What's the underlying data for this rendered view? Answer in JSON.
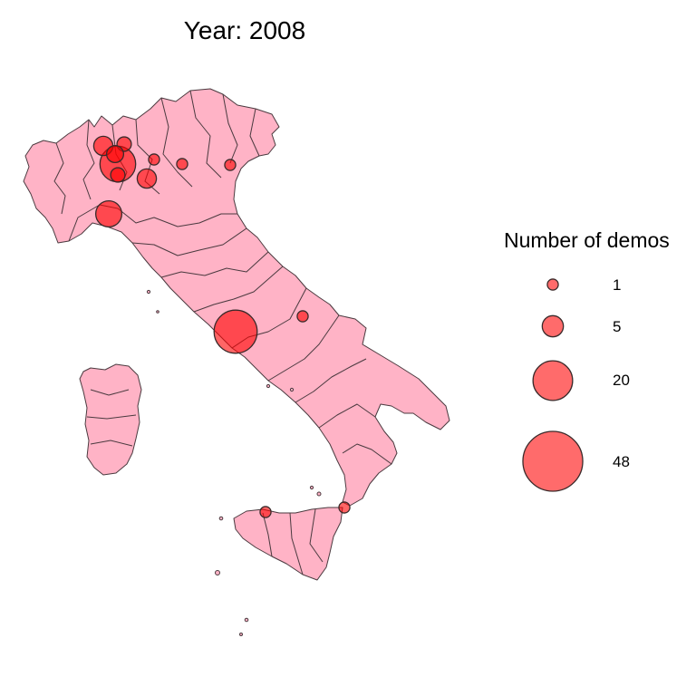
{
  "title": "Year: 2008",
  "colors": {
    "land_fill": "#ffb3c6",
    "border": "#4a3a3f",
    "bubble_fill": "#ff0000",
    "bubble_legend_fill": "#ff6b6b"
  },
  "legend": {
    "title": "Number of demos",
    "entries": [
      {
        "label": "1",
        "value": 1
      },
      {
        "label": "5",
        "value": 5
      },
      {
        "label": "20",
        "value": 20
      },
      {
        "label": "48",
        "value": 48
      }
    ]
  },
  "bubbles": [
    {
      "name": "turin-bubble",
      "value": 8
    },
    {
      "name": "milan-bubble",
      "value": 16
    },
    {
      "name": "como-bubble",
      "value": 4
    },
    {
      "name": "bergamo-bubble",
      "value": 2
    },
    {
      "name": "monza-bubble",
      "value": 3
    },
    {
      "name": "pavia-bubble",
      "value": 2
    },
    {
      "name": "brescia-bubble",
      "value": 1
    },
    {
      "name": "verona-bubble",
      "value": 1
    },
    {
      "name": "venice-bubble",
      "value": 1
    },
    {
      "name": "piacenza-bubble",
      "value": 4
    },
    {
      "name": "rome-bubble",
      "value": 24
    },
    {
      "name": "pescara-bubble",
      "value": 1
    },
    {
      "name": "palermo-bubble",
      "value": 1
    },
    {
      "name": "reggio-calabria-bubble",
      "value": 1
    }
  ]
}
